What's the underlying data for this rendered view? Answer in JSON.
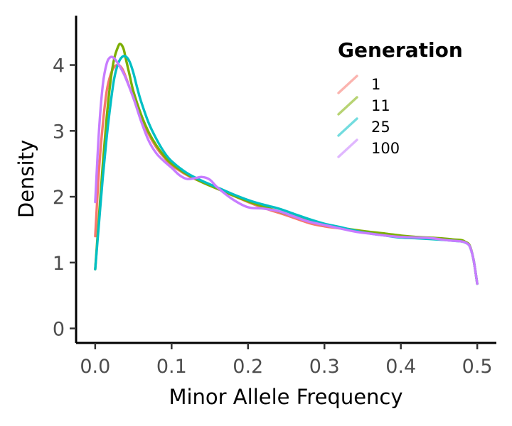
{
  "chart_data": {
    "type": "line",
    "title": "",
    "xlabel": "Minor Allele Frequency",
    "ylabel": "Density",
    "xlim": [
      -0.025,
      0.525
    ],
    "ylim": [
      -0.22,
      4.75
    ],
    "x_ticks": [
      0.0,
      0.1,
      0.2,
      0.3,
      0.4,
      0.5
    ],
    "x_tick_labels": [
      "0.0",
      "0.1",
      "0.2",
      "0.3",
      "0.4",
      "0.5"
    ],
    "y_ticks": [
      0,
      1,
      2,
      3,
      4
    ],
    "y_tick_labels": [
      "0",
      "1",
      "2",
      "3",
      "4"
    ],
    "grid": false,
    "legend": {
      "title": "Generation",
      "position": "top-right",
      "entries": [
        "1",
        "11",
        "25",
        "100"
      ]
    },
    "series": [
      {
        "name": "1",
        "color": "#F8766D",
        "points": [
          [
            0.0,
            1.4
          ],
          [
            0.005,
            2.4
          ],
          [
            0.01,
            3.1
          ],
          [
            0.015,
            3.6
          ],
          [
            0.02,
            3.85
          ],
          [
            0.025,
            3.97
          ],
          [
            0.03,
            4.0
          ],
          [
            0.035,
            3.95
          ],
          [
            0.04,
            3.82
          ],
          [
            0.05,
            3.5
          ],
          [
            0.06,
            3.2
          ],
          [
            0.07,
            2.95
          ],
          [
            0.08,
            2.75
          ],
          [
            0.09,
            2.6
          ],
          [
            0.1,
            2.48
          ],
          [
            0.12,
            2.33
          ],
          [
            0.14,
            2.22
          ],
          [
            0.16,
            2.12
          ],
          [
            0.18,
            2.02
          ],
          [
            0.2,
            1.92
          ],
          [
            0.22,
            1.83
          ],
          [
            0.25,
            1.72
          ],
          [
            0.28,
            1.6
          ],
          [
            0.3,
            1.55
          ],
          [
            0.32,
            1.52
          ],
          [
            0.35,
            1.47
          ],
          [
            0.38,
            1.43
          ],
          [
            0.4,
            1.4
          ],
          [
            0.42,
            1.38
          ],
          [
            0.45,
            1.36
          ],
          [
            0.47,
            1.34
          ],
          [
            0.48,
            1.33
          ],
          [
            0.485,
            1.31
          ],
          [
            0.49,
            1.26
          ],
          [
            0.495,
            1.05
          ],
          [
            0.5,
            0.68
          ]
        ]
      },
      {
        "name": "11",
        "color": "#7CAE00",
        "points": [
          [
            0.0,
            0.9
          ],
          [
            0.005,
            1.7
          ],
          [
            0.01,
            2.5
          ],
          [
            0.015,
            3.2
          ],
          [
            0.02,
            3.75
          ],
          [
            0.025,
            4.1
          ],
          [
            0.03,
            4.28
          ],
          [
            0.033,
            4.32
          ],
          [
            0.037,
            4.25
          ],
          [
            0.04,
            4.1
          ],
          [
            0.045,
            3.85
          ],
          [
            0.05,
            3.6
          ],
          [
            0.06,
            3.25
          ],
          [
            0.07,
            2.98
          ],
          [
            0.08,
            2.78
          ],
          [
            0.09,
            2.62
          ],
          [
            0.1,
            2.5
          ],
          [
            0.12,
            2.34
          ],
          [
            0.14,
            2.22
          ],
          [
            0.16,
            2.12
          ],
          [
            0.18,
            2.02
          ],
          [
            0.2,
            1.93
          ],
          [
            0.22,
            1.85
          ],
          [
            0.25,
            1.74
          ],
          [
            0.28,
            1.63
          ],
          [
            0.3,
            1.57
          ],
          [
            0.32,
            1.53
          ],
          [
            0.35,
            1.48
          ],
          [
            0.38,
            1.44
          ],
          [
            0.4,
            1.41
          ],
          [
            0.42,
            1.39
          ],
          [
            0.45,
            1.37
          ],
          [
            0.47,
            1.35
          ],
          [
            0.48,
            1.34
          ],
          [
            0.485,
            1.31
          ],
          [
            0.49,
            1.26
          ],
          [
            0.495,
            1.05
          ],
          [
            0.5,
            0.68
          ]
        ]
      },
      {
        "name": "25",
        "color": "#00BFC4",
        "points": [
          [
            0.0,
            0.9
          ],
          [
            0.005,
            1.6
          ],
          [
            0.01,
            2.3
          ],
          [
            0.015,
            2.9
          ],
          [
            0.02,
            3.4
          ],
          [
            0.025,
            3.8
          ],
          [
            0.03,
            4.02
          ],
          [
            0.035,
            4.12
          ],
          [
            0.04,
            4.13
          ],
          [
            0.045,
            4.05
          ],
          [
            0.05,
            3.88
          ],
          [
            0.055,
            3.65
          ],
          [
            0.06,
            3.45
          ],
          [
            0.07,
            3.12
          ],
          [
            0.08,
            2.88
          ],
          [
            0.09,
            2.68
          ],
          [
            0.1,
            2.54
          ],
          [
            0.12,
            2.36
          ],
          [
            0.14,
            2.24
          ],
          [
            0.16,
            2.14
          ],
          [
            0.18,
            2.04
          ],
          [
            0.2,
            1.95
          ],
          [
            0.22,
            1.88
          ],
          [
            0.24,
            1.82
          ],
          [
            0.26,
            1.74
          ],
          [
            0.28,
            1.66
          ],
          [
            0.3,
            1.59
          ],
          [
            0.32,
            1.54
          ],
          [
            0.35,
            1.46
          ],
          [
            0.38,
            1.41
          ],
          [
            0.4,
            1.38
          ],
          [
            0.42,
            1.37
          ],
          [
            0.45,
            1.35
          ],
          [
            0.47,
            1.33
          ],
          [
            0.48,
            1.32
          ],
          [
            0.485,
            1.3
          ],
          [
            0.49,
            1.25
          ],
          [
            0.495,
            1.05
          ],
          [
            0.5,
            0.68
          ]
        ]
      },
      {
        "name": "100",
        "color": "#C77CFF",
        "points": [
          [
            0.0,
            1.92
          ],
          [
            0.005,
            3.0
          ],
          [
            0.01,
            3.7
          ],
          [
            0.015,
            4.02
          ],
          [
            0.02,
            4.12
          ],
          [
            0.025,
            4.1
          ],
          [
            0.03,
            4.02
          ],
          [
            0.035,
            3.92
          ],
          [
            0.04,
            3.8
          ],
          [
            0.05,
            3.5
          ],
          [
            0.06,
            3.15
          ],
          [
            0.07,
            2.85
          ],
          [
            0.08,
            2.66
          ],
          [
            0.09,
            2.54
          ],
          [
            0.1,
            2.44
          ],
          [
            0.11,
            2.33
          ],
          [
            0.12,
            2.27
          ],
          [
            0.13,
            2.28
          ],
          [
            0.14,
            2.3
          ],
          [
            0.15,
            2.26
          ],
          [
            0.16,
            2.14
          ],
          [
            0.18,
            1.96
          ],
          [
            0.2,
            1.84
          ],
          [
            0.22,
            1.82
          ],
          [
            0.24,
            1.78
          ],
          [
            0.26,
            1.7
          ],
          [
            0.28,
            1.62
          ],
          [
            0.3,
            1.57
          ],
          [
            0.32,
            1.52
          ],
          [
            0.34,
            1.47
          ],
          [
            0.36,
            1.44
          ],
          [
            0.38,
            1.41
          ],
          [
            0.4,
            1.39
          ],
          [
            0.42,
            1.38
          ],
          [
            0.44,
            1.37
          ],
          [
            0.46,
            1.34
          ],
          [
            0.48,
            1.32
          ],
          [
            0.485,
            1.3
          ],
          [
            0.49,
            1.25
          ],
          [
            0.495,
            1.05
          ],
          [
            0.5,
            0.68
          ]
        ]
      }
    ]
  }
}
